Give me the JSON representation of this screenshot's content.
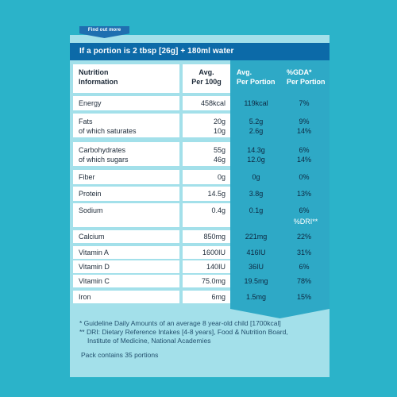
{
  "find_out_more": "Find out more",
  "portion_header": "If a portion is 2 tbsp [26g] + 180ml water",
  "columns": {
    "label": [
      "Nutrition",
      "Information"
    ],
    "per100": [
      "Avg.",
      "Per 100g"
    ],
    "portion": [
      "Avg.",
      "Per Portion"
    ],
    "gda": [
      "%GDA*",
      "Per Portion"
    ]
  },
  "rows": [
    {
      "label": [
        "Energy"
      ],
      "per100": [
        "458kcal"
      ],
      "portion": [
        "119kcal"
      ],
      "gda": [
        "7%"
      ]
    },
    {
      "label": [
        "Fats",
        "of which saturates"
      ],
      "per100": [
        "20g",
        "10g"
      ],
      "portion": [
        "5.2g",
        "2.6g"
      ],
      "gda": [
        "9%",
        "14%"
      ]
    },
    {
      "label": [
        "Carbohydrates",
        "of which sugars"
      ],
      "per100": [
        "55g",
        "46g"
      ],
      "portion": [
        "14.3g",
        "12.0g"
      ],
      "gda": [
        "6%",
        "14%"
      ]
    },
    {
      "label": [
        "Fiber"
      ],
      "per100": [
        "0g"
      ],
      "portion": [
        "0g"
      ],
      "gda": [
        "0%"
      ]
    },
    {
      "label": [
        "Protein"
      ],
      "per100": [
        "14.5g"
      ],
      "portion": [
        "3.8g"
      ],
      "gda": [
        "13%"
      ]
    },
    {
      "label": [
        "Sodium"
      ],
      "per100": [
        "0.4g"
      ],
      "portion": [
        "0.1g"
      ],
      "gda": [
        "6%"
      ]
    }
  ],
  "dri_header": "%DRI**",
  "dri_rows": [
    {
      "label": "Calcium",
      "per100": "850mg",
      "portion": "221mg",
      "dri": "22%"
    },
    {
      "label": "Vitamin A",
      "per100": "1600IU",
      "portion": "416IU",
      "dri": "31%"
    },
    {
      "label": "Vitamin D",
      "per100": "140IU",
      "portion": "36IU",
      "dri": "6%"
    },
    {
      "label": "Vitamin C",
      "per100": "75.0mg",
      "portion": "19.5mg",
      "dri": "78%"
    },
    {
      "label": "Iron",
      "per100": "6mg",
      "portion": "1.5mg",
      "dri": "15%"
    }
  ],
  "footer": {
    "gda_note": "* Guideline Daily Amounts of an average 8 year-old child [1700kcal]",
    "dri_note_1": "** DRI: Dietary Reference Intakes [4-8 years], Food & Nutrition Board,",
    "dri_note_2": "Institute of Medicine, National Academies",
    "pack": "Pack contains 35 portions"
  },
  "colors": {
    "background": "#2bb3c9",
    "panel": "#a3e0ea",
    "header_bar": "#0c6aa8",
    "column_blue": "#2ea9c6",
    "tab": "#1f6fb0"
  }
}
